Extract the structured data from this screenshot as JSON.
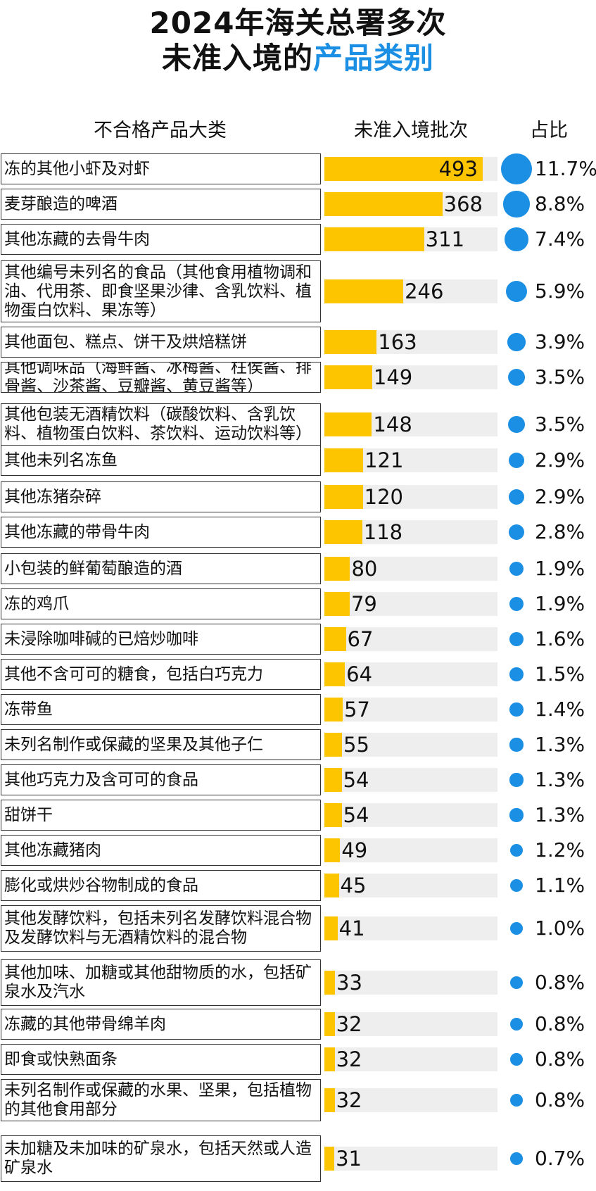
{
  "title": {
    "line1": "2024年海关总署多次",
    "line2_prefix": "未准入境的",
    "line2_accent": "产品类别"
  },
  "headers": {
    "category": "不合格产品大类",
    "batches": "未准入境批次",
    "share": "占比"
  },
  "colors": {
    "bar": "#fcc500",
    "track": "#eeeeee",
    "dot": "#1a8fe3",
    "accent": "#1a8fe3"
  },
  "chart_data": {
    "type": "bar",
    "orientation": "horizontal",
    "title": "2024年海关总署多次未准入境的产品类别",
    "xlabel": "未准入境批次",
    "ylabel": "不合格产品大类",
    "xlim": [
      0,
      540
    ],
    "categories": [
      "冻的其他小虾及对虾",
      "麦芽酿造的啤酒",
      "其他冻藏的去骨牛肉",
      "其他编号未列名的食品（其他食用植物调和油、代用茶、即食坚果沙律、含乳饮料、植物蛋白饮料、果冻等）",
      "其他面包、糕点、饼干及烘焙糕饼",
      "其他调味品（海鲜酱、冰梅酱、柱侯酱、排骨酱、沙茶酱、豆瓣酱、黄豆酱等）",
      "其他包装无酒精饮料（碳酸饮料、含乳饮料、植物蛋白饮料、茶饮料、运动饮料等）",
      "其他未列名冻鱼",
      "其他冻猪杂碎",
      "其他冻藏的带骨牛肉",
      "小包装的鲜葡萄酿造的酒",
      "冻的鸡爪",
      "未浸除咖啡碱的已焙炒咖啡",
      "其他不含可可的糖食，包括白巧克力",
      "冻带鱼",
      "未列名制作或保藏的坚果及其他子仁",
      "其他巧克力及含可可的食品",
      "甜饼干",
      "其他冻藏猪肉",
      "膨化或烘炒谷物制成的食品",
      "其他发酵饮料，包括未列名发酵饮料混合物及发酵饮料与无酒精饮料的混合物",
      "其他加味、加糖或其他甜物质的水，包括矿泉水及汽水",
      "冻藏的其他带骨绵羊肉",
      "即食或快熟面条",
      "未列名制作或保藏的水果、坚果，包括植物的其他食用部分",
      "未加糖及未加味的矿泉水，包括天然或人造矿泉水"
    ],
    "values": [
      493,
      368,
      311,
      246,
      163,
      149,
      148,
      121,
      120,
      118,
      80,
      79,
      67,
      64,
      57,
      55,
      54,
      54,
      49,
      45,
      41,
      33,
      32,
      32,
      32,
      31
    ],
    "shares": [
      "11.7%",
      "8.8%",
      "7.4%",
      "5.9%",
      "3.9%",
      "3.5%",
      "3.5%",
      "2.9%",
      "2.9%",
      "2.8%",
      "1.9%",
      "1.9%",
      "1.6%",
      "1.5%",
      "1.4%",
      "1.3%",
      "1.3%",
      "1.3%",
      "1.2%",
      "1.1%",
      "1.0%",
      "0.8%",
      "0.8%",
      "0.8%",
      "0.8%",
      "0.7%"
    ],
    "share_values": [
      11.7,
      8.8,
      7.4,
      5.9,
      3.9,
      3.5,
      3.5,
      2.9,
      2.9,
      2.8,
      1.9,
      1.9,
      1.6,
      1.5,
      1.4,
      1.3,
      1.3,
      1.3,
      1.2,
      1.1,
      1.0,
      0.8,
      0.8,
      0.8,
      0.8,
      0.7
    ],
    "grid": false,
    "legend": "none"
  }
}
